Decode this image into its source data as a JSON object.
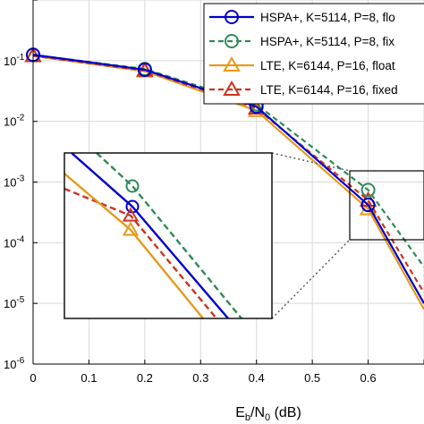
{
  "chart_data": {
    "type": "line",
    "xlabel": "E_b/N_0 (dB)",
    "xlabel_parts": {
      "main": "E",
      "sub1": "b",
      "mid": "/N",
      "sub2": "0",
      "tail": " (dB)"
    },
    "xlim": [
      0,
      0.7
    ],
    "ylim": [
      1e-06,
      1
    ],
    "yscale": "log",
    "grid": true,
    "legend_position": "top-right",
    "x_ticks": [
      "0",
      "0.1",
      "0.2",
      "0.3",
      "0.4",
      "0.5",
      "0.6"
    ],
    "y_ticks": [
      {
        "base": "10",
        "exp": "-1",
        "value": 0.1
      },
      {
        "base": "10",
        "exp": "-2",
        "value": 0.01
      },
      {
        "base": "10",
        "exp": "-3",
        "value": 0.001
      },
      {
        "base": "10",
        "exp": "-4",
        "value": 0.0001
      },
      {
        "base": "10",
        "exp": "-5",
        "value": 1e-05
      },
      {
        "base": "10",
        "exp": "-6",
        "value": 1e-06
      }
    ],
    "series": [
      {
        "name": "HSPA+, K=5114, P=8, flo",
        "color": "#0000cc",
        "dash": "solid",
        "marker": "circle",
        "x": [
          0,
          0.2,
          0.4,
          0.6,
          0.7
        ],
        "y": [
          0.125,
          0.071,
          0.0175,
          0.00042,
          1e-05
        ]
      },
      {
        "name": "HSPA+, K=5114, P=8, fix",
        "color": "#2e8b57",
        "dash": "dashed",
        "marker": "circle",
        "x": [
          0,
          0.2,
          0.4,
          0.6,
          0.7
        ],
        "y": [
          0.125,
          0.073,
          0.019,
          0.00074,
          4e-05
        ]
      },
      {
        "name": "LTE, K=6144, P=16, float",
        "color": "#e69a1a",
        "dash": "solid",
        "marker": "triangle",
        "x": [
          0,
          0.2,
          0.4,
          0.6,
          0.7
        ],
        "y": [
          0.12,
          0.067,
          0.015,
          0.00036,
          8e-06
        ]
      },
      {
        "name": "LTE, K=6144, P=16, fixed",
        "color": "#cc3322",
        "dash": "dashed",
        "marker": "triangle",
        "x": [
          0,
          0.2,
          0.4,
          0.6,
          0.7
        ],
        "y": [
          0.12,
          0.069,
          0.0165,
          0.0005,
          1.5e-05
        ]
      }
    ],
    "inset": {
      "type": "line",
      "zoom_of": "E_b/N_0 around 0.6 dB",
      "lines": [
        {
          "series": 1,
          "color": "#2e8b57",
          "dash": "dashed"
        },
        {
          "series": 0,
          "color": "#0000cc",
          "dash": "solid"
        },
        {
          "series": 3,
          "color": "#cc3322",
          "dash": "dashed"
        },
        {
          "series": 2,
          "color": "#e69a1a",
          "dash": "solid"
        }
      ]
    }
  }
}
